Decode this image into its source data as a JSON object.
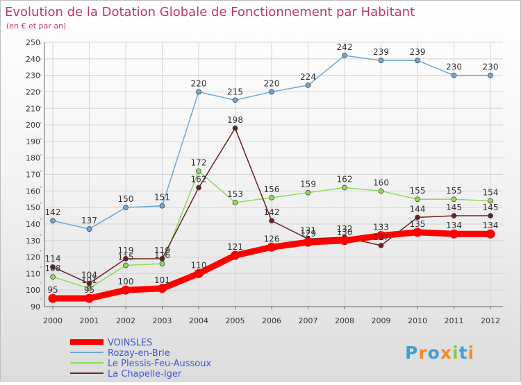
{
  "chart_data": {
    "type": "line",
    "title": "Evolution de la Dotation Globale de Fonctionnement par Habitant",
    "subtitle": "(en € et par an)",
    "categories": [
      "2000",
      "2001",
      "2002",
      "2003",
      "2004",
      "2005",
      "2006",
      "2007",
      "2008",
      "2009",
      "2010",
      "2011",
      "2012"
    ],
    "ylim": [
      90,
      250
    ],
    "yticks": [
      90,
      100,
      110,
      120,
      130,
      140,
      150,
      160,
      170,
      180,
      190,
      200,
      210,
      220,
      230,
      240,
      250
    ],
    "grid": true,
    "legend_position": "bottom-left",
    "series": [
      {
        "name": "VOINSLES",
        "color": "#ff0000",
        "values": [
          95,
          95,
          100,
          101,
          110,
          121,
          126,
          129,
          130,
          133,
          135,
          134,
          134
        ]
      },
      {
        "name": "Rozay-en-Brie",
        "color": "#6ea6d6",
        "values": [
          142,
          137,
          150,
          151,
          220,
          215,
          220,
          224,
          242,
          239,
          239,
          230,
          230
        ]
      },
      {
        "name": "Le Plessis-Feu-Aussoux",
        "color": "#8ed85a",
        "values": [
          108,
          101,
          115,
          116,
          172,
          153,
          156,
          159,
          162,
          160,
          155,
          155,
          154
        ]
      },
      {
        "name": "La Chapelle-Iger",
        "color": "#6b1f1f",
        "values": [
          114,
          104,
          119,
          119,
          162,
          198,
          142,
          131,
          132,
          127,
          144,
          145,
          145
        ]
      }
    ]
  },
  "logo": {
    "text": "Proxiti"
  }
}
